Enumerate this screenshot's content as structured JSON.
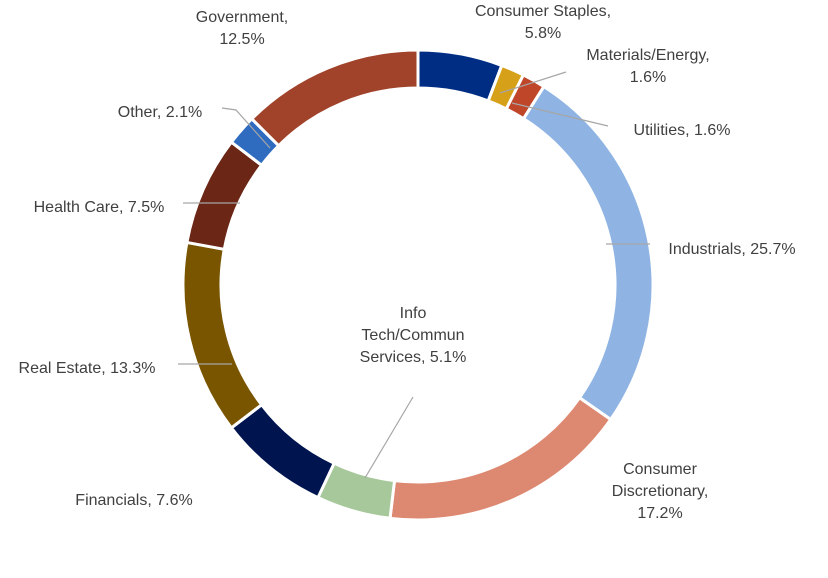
{
  "chart_data": {
    "type": "pie",
    "variant": "donut",
    "title": "",
    "legend": "none",
    "series": [
      {
        "label": "Consumer Staples",
        "value": 5.8,
        "color": "#002D84",
        "text": [
          "Consumer Staples,",
          "5.8%"
        ]
      },
      {
        "label": "Materials/Energy",
        "value": 1.6,
        "color": "#D6A018",
        "text": [
          "Materials/Energy,",
          "1.6%"
        ]
      },
      {
        "label": "Utilities",
        "value": 1.6,
        "color": "#C0462A",
        "text": [
          "Utilities, 1.6%"
        ]
      },
      {
        "label": "Industrials",
        "value": 25.7,
        "color": "#8FB4E3",
        "text": [
          "Industrials, 25.7%"
        ]
      },
      {
        "label": "Consumer Discretionary",
        "value": 17.2,
        "color": "#DD8870",
        "text": [
          "Consumer",
          "Discretionary,",
          "17.2%"
        ]
      },
      {
        "label": "Info Tech/Commun Services",
        "value": 5.1,
        "color": "#A6C89A",
        "text": [
          "Info",
          "Tech/Commun",
          "Services, 5.1%"
        ]
      },
      {
        "label": "Financials",
        "value": 7.6,
        "color": "#001550",
        "text": [
          "Financials, 7.6%"
        ]
      },
      {
        "label": "Real Estate",
        "value": 13.3,
        "color": "#7A5500",
        "text": [
          "Real Estate, 13.3%"
        ]
      },
      {
        "label": "Health Care",
        "value": 7.5,
        "color": "#6B2616",
        "text": [
          "Health Care, 7.5%"
        ]
      },
      {
        "label": "Other",
        "value": 2.1,
        "color": "#2F6CC0",
        "text": [
          "Other, 2.1%"
        ]
      },
      {
        "label": "Government",
        "value": 12.5,
        "color": "#A0432A",
        "text": [
          "Government,",
          "12.5%"
        ]
      }
    ]
  }
}
